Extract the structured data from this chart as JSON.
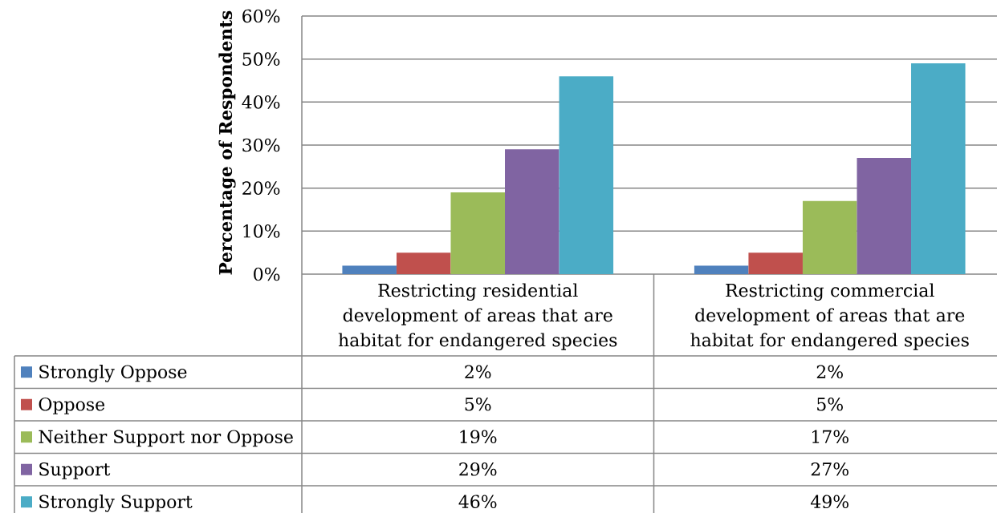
{
  "chart_data": {
    "type": "bar",
    "ylabel": "Percentage of Respondents",
    "categories": [
      "Restricting residential development of areas that are habitat for endangered species",
      "Restricting commercial development of areas that are habitat for endangered species"
    ],
    "series": [
      {
        "name": "Strongly Oppose",
        "color": "#4f81bd",
        "values": [
          2,
          2
        ],
        "value_labels": [
          "2%",
          "2%"
        ]
      },
      {
        "name": "Oppose",
        "color": "#c0504d",
        "values": [
          5,
          5
        ],
        "value_labels": [
          "5%",
          "5%"
        ]
      },
      {
        "name": "Neither Support nor Oppose",
        "color": "#9bbb59",
        "values": [
          19,
          17
        ],
        "value_labels": [
          "19%",
          "17%"
        ]
      },
      {
        "name": "Support",
        "color": "#8064a2",
        "values": [
          29,
          27
        ],
        "value_labels": [
          "29%",
          "27%"
        ]
      },
      {
        "name": "Strongly Support",
        "color": "#4bacc6",
        "values": [
          46,
          49
        ],
        "value_labels": [
          "46%",
          "49%"
        ]
      }
    ],
    "ylim": [
      0,
      60
    ],
    "yticks": [
      {
        "value": 0,
        "label": "0%"
      },
      {
        "value": 10,
        "label": "10%"
      },
      {
        "value": 20,
        "label": "20%"
      },
      {
        "value": 30,
        "label": "30%"
      },
      {
        "value": 40,
        "label": "40%"
      },
      {
        "value": 50,
        "label": "50%"
      },
      {
        "value": 60,
        "label": "60%"
      }
    ],
    "grid": "y",
    "legend": "bottom"
  }
}
